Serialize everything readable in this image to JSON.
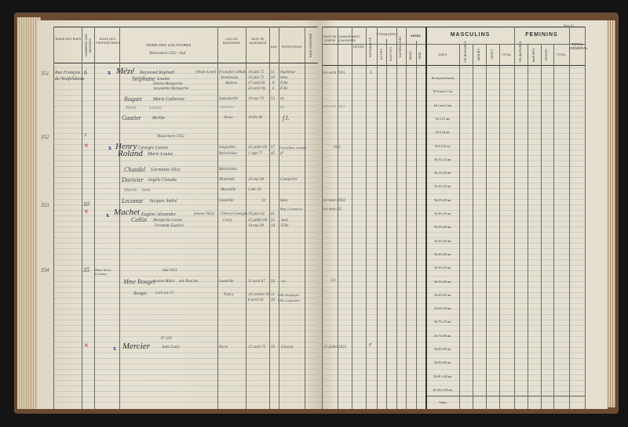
{
  "left_page": {
    "headers": {
      "rue": "Noms des rues",
      "numero": "Numéros des maisons",
      "proprietaires": "Noms des propriétaires",
      "locataires": "Noms des locataires",
      "lieu": "Lieu de naissance",
      "date": "Date de naissance",
      "age": "Age",
      "profession": "Profession",
      "extra": "Date d'entrée"
    },
    "subheader": "Mouvement 1922 - Sud"
  },
  "right_page": {
    "page_number": "Page 63",
    "headers": {
      "sortie": "Date de sortie",
      "changement": "Changement d'adresse",
      "deces": "Décès",
      "nationalite": "Nationalité",
      "etrangers": "Étrangers",
      "col_a": "Actifs",
      "col_b": "Inactifs",
      "naturalises": "Naturalisés",
      "sexe": "Sexes",
      "masc": "Masc.",
      "fem": "Fém.",
      "masculins": "MASCULINS",
      "feminins": "FEMININS",
      "ages": "Ages",
      "celibataires": "Célibataires",
      "maries": "Mariés",
      "veufs": "Veufs",
      "total": "Total",
      "celibataires_f": "Célibataires",
      "mariees": "Mariées",
      "veuves": "Veuves",
      "total_f": "Total",
      "total_general": "TOTAL GÉNÉRAL"
    },
    "age_bands": [
      "De un jour à 6 mois",
      "De 6 mois à 1 an",
      "De 1 an à 2 ans",
      "De 2 à 5 ans",
      "De 5 à 8 ans",
      "De 8 à 10 ans",
      "De 10 à 15 ans",
      "De 15 à 20 ans",
      "De 20 à 25 ans",
      "De 25 à 30 ans",
      "De 30 à 35 ans",
      "De 35 à 40 ans",
      "De 40 à 45 ans",
      "De 45 à 50 ans",
      "De 50 à 55 ans",
      "De 55 à 60 ans",
      "De 60 à 65 ans",
      "De 65 à 70 ans",
      "De 70 à 75 ans",
      "De 75 à 80 ans",
      "De 80 à 85 ans",
      "De 85 à 90 ans",
      "De 90 à 100 ans",
      "De 100 à 105 ans",
      "Totaux"
    ]
  },
  "entries": {
    "e351": {
      "num": "351",
      "street": "Rue François",
      "street2": "de Neufchâteau",
      "house": "6",
      "name": "Mézé",
      "given": "Raymond Raphaël",
      "note": "(Veuve Loué)",
      "name2": "Stéphane",
      "given2": "Louise",
      "c1": "Denise Marguerite",
      "c2": "Jacqueline Marguerite",
      "lieu": "Francfort s/Main",
      "lieu2": "Strasbourg",
      "lieu3": "Amiens",
      "d1": "10 juin 72",
      "d2": "15 juin 73",
      "d3": "17 août 03",
      "d4": "23 avril 06",
      "a1": "51",
      "a2": "50",
      "a3": "8",
      "a4": "6",
      "p1": "Ingénieur",
      "p2": "Sans",
      "p3": "Fille",
      "p4": "Fille",
      "r1": "Roquet",
      "r1g": "Marie Catherine",
      "r1l": "Jumeauville",
      "r1d": "19 mai 70",
      "r1a": "53",
      "r1p": "do",
      "r2": "Bazin",
      "r2g": "Louise",
      "r2l": "Neuville",
      "r2p": "do",
      "r3": "Gautier",
      "r3g": "Berthe",
      "r3l": "Arras",
      "r3d": "19 fév 83",
      "r3p": "f.l.",
      "sortie": "1er avril 1921",
      "sortie2": "1er avril 1921",
      "mark": "1"
    },
    "e352": {
      "num": "352",
      "house": "3",
      "sub": "Mouvement 1922",
      "name": "Henry",
      "given": "Georges Lucien",
      "lieu": "Soignolles",
      "d1": "22 juillet 66",
      "a1": "57",
      "p1": "Contrôleur retraité",
      "name2": "Roland",
      "given2": "Marie Louise",
      "lieu2": "Rebréchien",
      "d2": "1 sept 77",
      "a2": "45",
      "p2": "dº",
      "r1": "Chandel",
      "r1g": "Germaine Alice",
      "r1l": "Rebréchien",
      "r2": "Duvivier",
      "r2g": "Angèle Claudie",
      "r2l": "Montreuil",
      "r2d": "24 mai 94",
      "r2p": "Couturière",
      "r3": "Martin",
      "r3g": "Jean",
      "r3l": "Marseille",
      "r3d": "3 déc 65",
      "r4": "Lecomte",
      "r4g": "Jacques André",
      "r4l": "Lunéville",
      "r4d": "22",
      "r4p": "Sans",
      "sortie": "1921",
      "sortie2": "1er mars 1922"
    },
    "e353": {
      "num": "353",
      "house": "10",
      "name": "Machet",
      "given": "Eugène Alexandre",
      "note": "(veuve 1922)",
      "name2": "Collin",
      "given2": "Marguerite Louise",
      "c1": "Fernande Eugénie",
      "lieu": "Chevry-Cossigny",
      "lieu2": "Crécy",
      "d1": "10 janv 62",
      "a1": "61",
      "p1": "Rep. Commerce",
      "d2": "22 juillet 68",
      "a2": "55",
      "p2": "sans",
      "d3": "19 mai 09",
      "a3": "14",
      "p3": "Fille",
      "sortie": "1er mars 22"
    },
    "e354": {
      "num": "354",
      "house": "35",
      "owner": "Mme Veuve Lemoine",
      "sub": "Sud 1921",
      "name": "Mme Rouget",
      "given": "Jeanne Marie",
      "note": "née Bouchet",
      "lieu": "Lunéville",
      "d1": "11 avril 67",
      "a1": "56",
      "p1": "s.p.",
      "name2": "Rouget",
      "given2": "(voir au nº)",
      "lieu2": "Nancy",
      "d2": "24 octobre 91",
      "a2": "31",
      "p2": "Fille Employée",
      "d3": "8 avril 93",
      "a3": "30",
      "p3": "Fille couturière",
      "sortie": "1/3"
    },
    "e355": {
      "sub": "Nº 230",
      "name": "Mercier",
      "given": "Jules Louis",
      "lieu": "Paris",
      "d1": "17 avril 73",
      "a1": "50",
      "p1": "Garçon",
      "sortie": "23 juillet 1922",
      "mark": "F"
    }
  },
  "colors": {
    "paper": "#e4dfcf",
    "ink": "#4a4a55",
    "red_mark": "#c23b3b",
    "blue_mark": "#2a3f8f",
    "cover": "#6b4a32"
  }
}
